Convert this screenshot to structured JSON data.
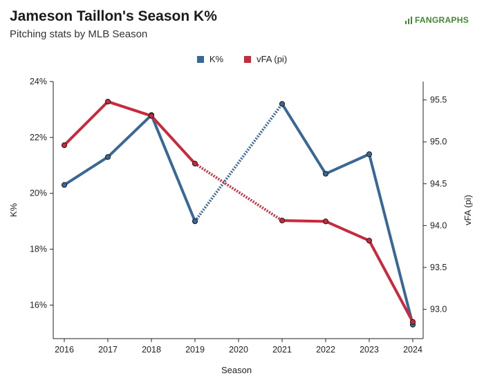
{
  "header": {
    "title": "Jameson Taillon's Season K%",
    "subtitle": "Pitching stats by MLB Season",
    "brand": "FANGRAPHS"
  },
  "colors": {
    "k_pct": "#3a6896",
    "vfa": "#c8293b"
  },
  "chart_data": {
    "type": "line",
    "title": "Jameson Taillon's Season K%",
    "subtitle": "Pitching stats by MLB Season",
    "xlabel": "Season",
    "ylabel_left": "K%",
    "ylabel_right": "vFA (pi)",
    "categories": [
      "2016",
      "2017",
      "2018",
      "2019",
      "2020",
      "2021",
      "2022",
      "2023",
      "2024"
    ],
    "ylim_left": [
      14.8,
      24.0
    ],
    "ylim_right": [
      92.65,
      95.72
    ],
    "yticks_left": [
      "16%",
      "18%",
      "20%",
      "22%",
      "24%"
    ],
    "yticks_left_values": [
      16,
      18,
      20,
      22,
      24
    ],
    "yticks_right": [
      "93.0",
      "93.5",
      "94.0",
      "94.5",
      "95.0",
      "95.5"
    ],
    "yticks_right_values": [
      93.0,
      93.5,
      94.0,
      94.5,
      95.0,
      95.5
    ],
    "legend_position": "top-center",
    "grid": false,
    "series": [
      {
        "name": "K%",
        "axis": "left",
        "color": "#3a6896",
        "values": [
          20.3,
          21.3,
          22.8,
          19.0,
          null,
          23.2,
          20.7,
          21.4,
          15.3
        ]
      },
      {
        "name": "vFA (pi)",
        "axis": "right",
        "color": "#c8293b",
        "values": [
          94.96,
          95.48,
          95.31,
          94.74,
          null,
          94.06,
          94.05,
          93.82,
          92.85
        ]
      }
    ]
  }
}
